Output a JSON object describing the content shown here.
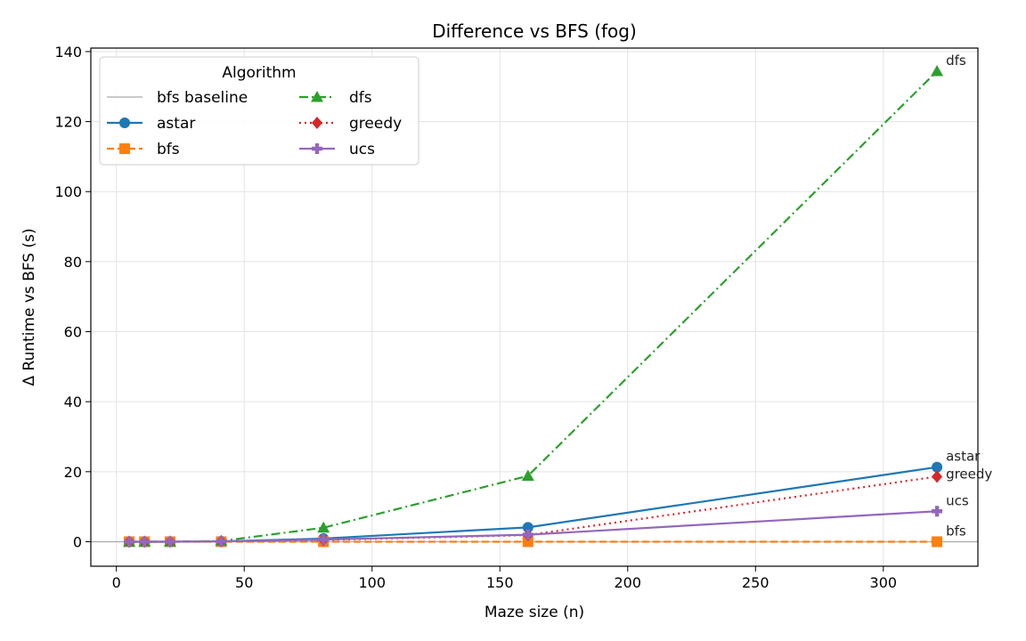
{
  "chart_data": {
    "type": "line",
    "title": "Difference vs BFS (fog)",
    "xlabel": "Maze size (n)",
    "ylabel": "Δ Runtime vs BFS (s)",
    "xlim": [
      -10,
      337
    ],
    "ylim": [
      -7,
      141
    ],
    "xticks": [
      0,
      50,
      100,
      150,
      200,
      250,
      300
    ],
    "yticks": [
      0,
      20,
      40,
      60,
      80,
      100,
      120,
      140
    ],
    "grid": true,
    "x": [
      5,
      11,
      21,
      41,
      81,
      161,
      321
    ],
    "baseline": {
      "name": "bfs baseline",
      "y": 0,
      "color": "#aaaaaa"
    },
    "legend": {
      "title": "Algorithm",
      "placement": "upper-left",
      "columns": 2
    },
    "series": [
      {
        "name": "astar",
        "color": "#1f77b4",
        "marker": "circle",
        "dash": "solid",
        "values": [
          0.0,
          0.0,
          0.0,
          0.1,
          0.9,
          4.1,
          21.3
        ]
      },
      {
        "name": "bfs",
        "color": "#ff7f0e",
        "marker": "square",
        "dash": "dashed",
        "values": [
          0.0,
          0.0,
          0.0,
          0.0,
          0.0,
          0.0,
          0.0
        ]
      },
      {
        "name": "dfs",
        "color": "#2ca02c",
        "marker": "triangle",
        "dash": "dashdot",
        "values": [
          0.0,
          0.0,
          0.0,
          0.2,
          4.0,
          18.8,
          134.4
        ]
      },
      {
        "name": "greedy",
        "color": "#d62728",
        "marker": "diamond",
        "dash": "dotted",
        "values": [
          0.0,
          0.0,
          0.0,
          0.1,
          0.5,
          1.9,
          18.6
        ]
      },
      {
        "name": "ucs",
        "color": "#9467bd",
        "marker": "plus",
        "dash": "solid",
        "values": [
          0.0,
          0.0,
          0.0,
          0.1,
          0.6,
          2.0,
          8.7
        ]
      }
    ],
    "end_labels": [
      {
        "text": "dfs",
        "series": "dfs"
      },
      {
        "text": "astar",
        "series": "astar"
      },
      {
        "text": "greedy",
        "series": "greedy"
      },
      {
        "text": "ucs",
        "series": "ucs"
      },
      {
        "text": "bfs",
        "series": "bfs"
      }
    ]
  }
}
